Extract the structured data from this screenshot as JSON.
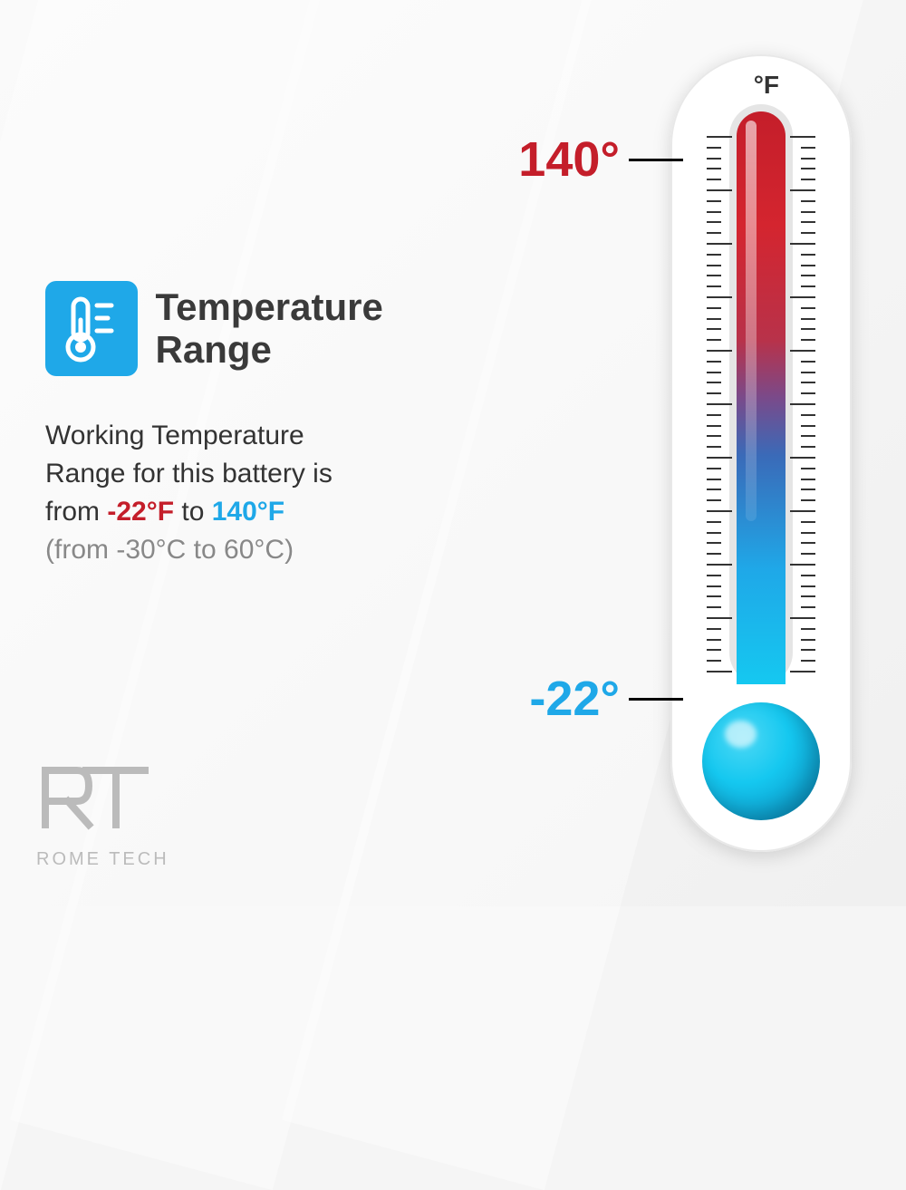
{
  "title": "Temperature Range",
  "description": {
    "line1": "Working Temperature",
    "line2": "Range for this battery is",
    "line3_pre": "from ",
    "low_f": "-22°F",
    "line3_mid": " to ",
    "high_f": "140°F",
    "line4": "(from -30°C to 60°C)"
  },
  "thermometer": {
    "unit": "°F",
    "high_value": "140°",
    "low_value": "-22°",
    "tube_gradient_stops": [
      "#c41e2a",
      "#d4252f",
      "#b8324a",
      "#7a4a8a",
      "#3a6ab8",
      "#1fa8e8",
      "#15c8f0"
    ],
    "bulb_color": "#15c8f0",
    "body_bg": "#ffffff",
    "tick_major_count": 10,
    "tick_minor_per_major": 5,
    "tick_color": "#333333"
  },
  "icon": {
    "bg_color": "#1fa8e8",
    "fg_color": "#ffffff"
  },
  "logo": {
    "mark": "RT",
    "text": "ROME TECH"
  },
  "colors": {
    "red": "#c41e2a",
    "blue": "#1fa8e8",
    "title": "#3a3a3a",
    "body_text": "#333333",
    "grey_text": "#888888",
    "background": "#f5f5f5"
  }
}
